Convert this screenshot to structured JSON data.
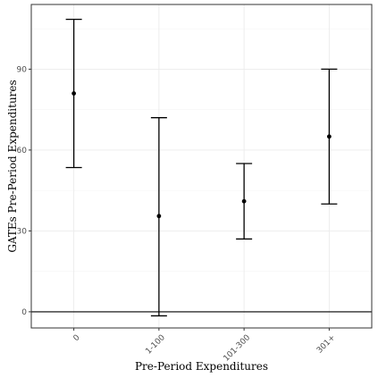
{
  "chart_data": {
    "type": "errorbar",
    "title": "",
    "xlabel": "Pre-Period Expenditures",
    "ylabel": "GATEs Pre-Period Expenditures",
    "categories": [
      "0",
      "1-100",
      "101-300",
      "301+"
    ],
    "estimates": [
      81,
      35.5,
      41,
      65
    ],
    "lower": [
      53.5,
      -1.5,
      27,
      40
    ],
    "upper": [
      108.5,
      72,
      55,
      90
    ],
    "ylim": [
      -6,
      114
    ],
    "yticks": [
      0,
      30,
      60,
      90
    ],
    "hline": 0,
    "grid": true,
    "legend": "none"
  }
}
